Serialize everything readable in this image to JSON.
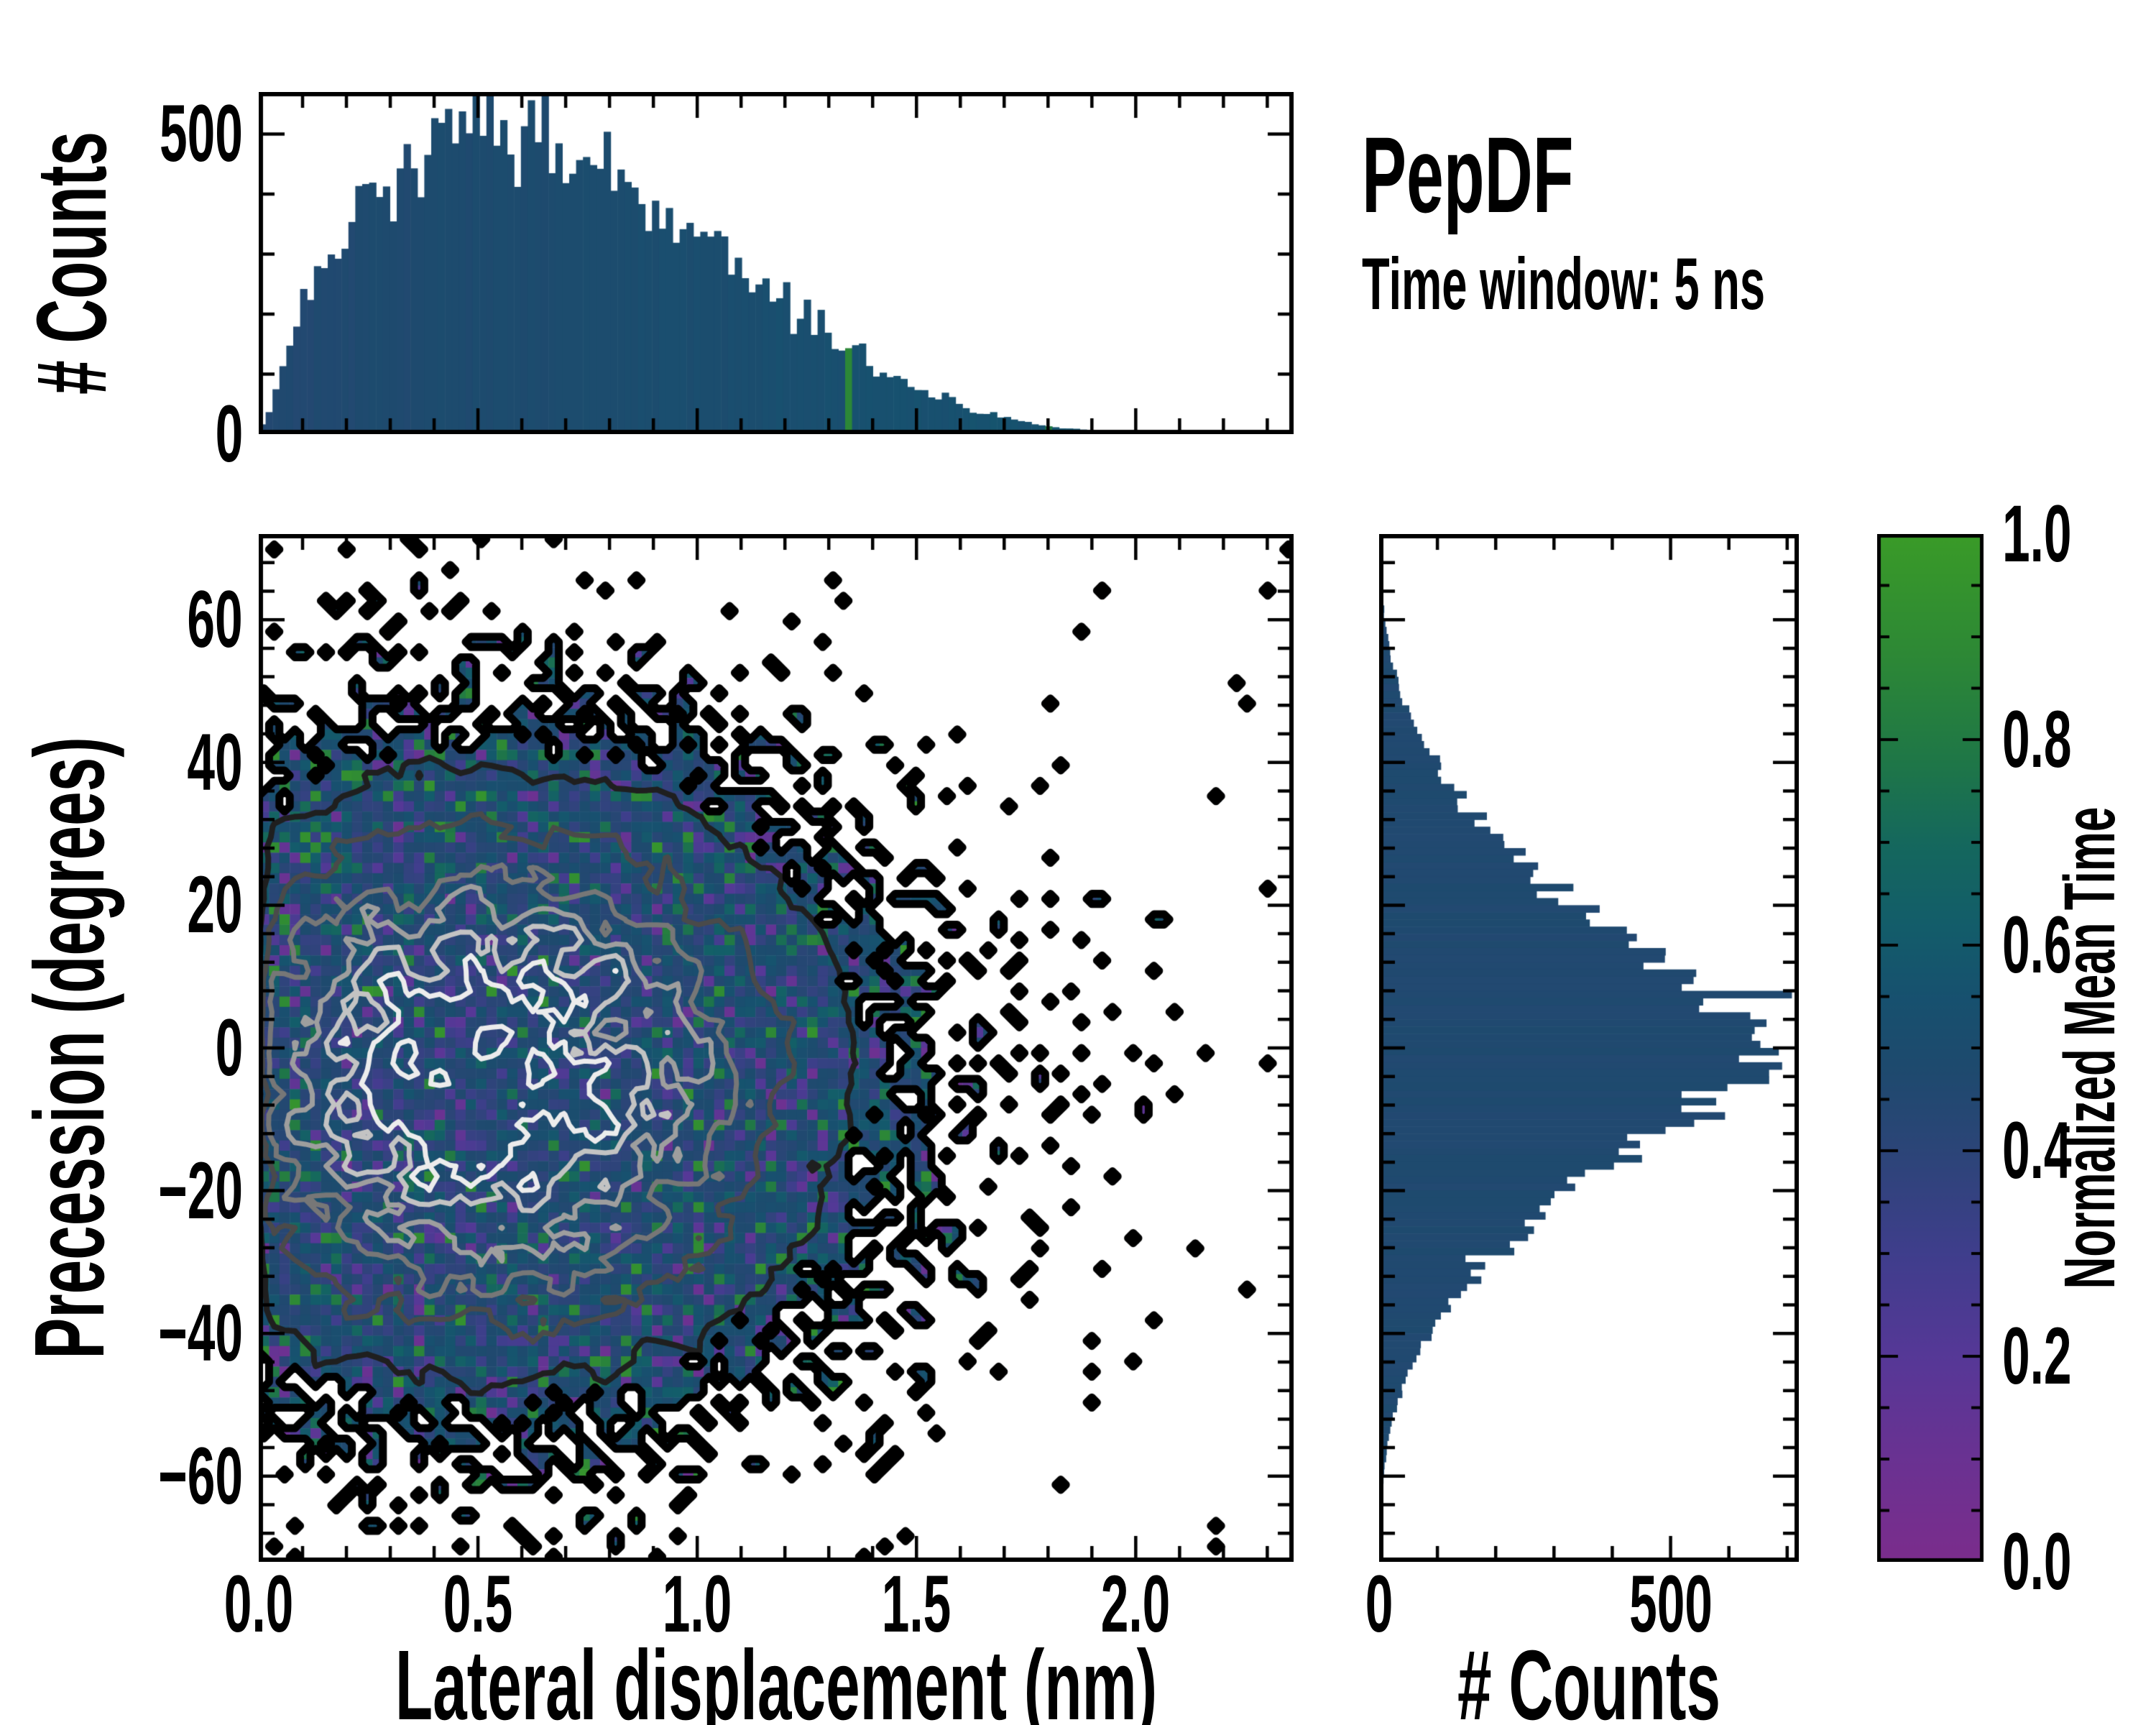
{
  "title": {
    "text": "PepDF",
    "subtitle": "Time window: 5 ns"
  },
  "colors": {
    "background": "#ffffff",
    "axis": "#000000",
    "text": "#000000",
    "histogram_bar": "#12416b",
    "contour_boundary": "#000000"
  },
  "render_seed": 20240607,
  "chart_data": [
    {
      "id": "top_histogram",
      "type": "bar",
      "orientation": "vertical",
      "ylabel": "# Counts",
      "xlabel": "",
      "xlim": [
        0,
        2.36
      ],
      "ylim": [
        0,
        570
      ],
      "ytick_values": [
        0,
        500
      ],
      "ytick_labels": [
        "0",
        "500"
      ],
      "y_minor_step": 100,
      "x_major_step": 0.5,
      "x_minor_step": 0.1,
      "bins": 150,
      "envelope_x": [
        0,
        0.03,
        0.06,
        0.1,
        0.14,
        0.18,
        0.22,
        0.26,
        0.3,
        0.35,
        0.4,
        0.45,
        0.5,
        0.55,
        0.6,
        0.65,
        0.7,
        0.75,
        0.8,
        0.85,
        0.9,
        0.95,
        1.0,
        1.05,
        1.1,
        1.15,
        1.2,
        1.25,
        1.3,
        1.35,
        1.4,
        1.45,
        1.5,
        1.55,
        1.6,
        1.65,
        1.7,
        1.75,
        1.8,
        1.85,
        1.9,
        1.95,
        2.0,
        2.1,
        2.2,
        2.36
      ],
      "envelope_counts": [
        5,
        45,
        130,
        205,
        265,
        305,
        350,
        395,
        430,
        465,
        485,
        500,
        508,
        515,
        505,
        495,
        472,
        455,
        438,
        420,
        395,
        362,
        330,
        305,
        278,
        250,
        222,
        195,
        168,
        142,
        118,
        97,
        79,
        63,
        49,
        38,
        28,
        20,
        14,
        10,
        7,
        5,
        4,
        2,
        1,
        0
      ],
      "noise_frac": 0.09,
      "color_value_base": 0.46,
      "color_value_slope": 0.055,
      "green_tail_prob": 0.05
    },
    {
      "id": "joint_heatmap",
      "type": "heatmap",
      "xlabel": "Lateral displacement (nm)",
      "ylabel": "Precession (degrees)",
      "xlim": [
        0,
        2.36
      ],
      "ylim": [
        -72,
        72
      ],
      "xtick_values": [
        0,
        0.5,
        1.0,
        1.5,
        2.0
      ],
      "xtick_labels": [
        "0.0",
        "0.5",
        "1.0",
        "1.5",
        "2.0"
      ],
      "ytick_values": [
        60,
        40,
        20,
        0,
        -20,
        -40,
        -60
      ],
      "ytick_labels": [
        "60",
        "40",
        "20",
        "0",
        "−20",
        "−40",
        "−60"
      ],
      "x_minor_step": 0.1,
      "y_minor_step": 4,
      "grid_cols": 100,
      "grid_rows": 100,
      "density_center": {
        "x": 0.52,
        "y": -4
      },
      "density_sigma": {
        "x": 0.42,
        "y": 22
      },
      "occupancy_gain": 7,
      "tail_amp": 0.055,
      "tail_width": 10,
      "value_base": 0.44,
      "value_spread": 0.09,
      "value_edge_shift": 0.1,
      "purple_prob_base": 0.05,
      "purple_prob_edge": 0.08,
      "green_prob_base": 0.04,
      "green_prob_edge": 0.12,
      "contour_levels": [
        {
          "level": 0.14,
          "color": "#1f1f1f",
          "width": 8
        },
        {
          "level": 0.28,
          "color": "#4a4a4a",
          "width": 7
        },
        {
          "level": 0.42,
          "color": "#777777",
          "width": 7
        },
        {
          "level": 0.56,
          "color": "#9e9e9e",
          "width": 7
        },
        {
          "level": 0.7,
          "color": "#c3c3c3",
          "width": 7
        },
        {
          "level": 0.84,
          "color": "#ececec",
          "width": 7
        }
      ],
      "boundary_contour": {
        "level": 0.5,
        "color": "#000000",
        "width": 11
      }
    },
    {
      "id": "right_histogram",
      "type": "bar",
      "orientation": "horizontal",
      "xlabel": "# Counts",
      "ylabel": "",
      "xlim": [
        0,
        720
      ],
      "ylim": [
        -72,
        72
      ],
      "xtick_values": [
        0,
        500
      ],
      "xtick_labels": [
        "0",
        "500"
      ],
      "x_minor_step": 100,
      "y_minor_step": 4,
      "bins": 144,
      "envelope_y": [
        -72,
        -65,
        -60,
        -55,
        -50,
        -45,
        -40,
        -35,
        -30,
        -25,
        -20,
        -15,
        -10,
        -6,
        -3,
        0,
        3,
        6,
        10,
        15,
        20,
        25,
        30,
        35,
        40,
        45,
        50,
        55,
        60,
        65,
        72
      ],
      "envelope_counts": [
        1,
        3,
        8,
        15,
        30,
        52,
        84,
        130,
        188,
        258,
        330,
        420,
        520,
        590,
        635,
        640,
        620,
        585,
        520,
        430,
        340,
        262,
        196,
        140,
        95,
        60,
        36,
        20,
        10,
        4,
        1
      ],
      "noise_frac": 0.07,
      "color_value": 0.47
    },
    {
      "id": "colorbar",
      "type": "colorbar",
      "label": "Normalized Mean Time",
      "tick_values": [
        0,
        0.2,
        0.4,
        0.6,
        0.8,
        1.0
      ],
      "tick_labels": [
        "0.0",
        "0.2",
        "0.4",
        "0.6",
        "0.8",
        "1.0"
      ],
      "minor_step": 0.05,
      "gradient_stops": [
        [
          0.0,
          "#7b2d8c"
        ],
        [
          0.1,
          "#6a3292"
        ],
        [
          0.2,
          "#563897"
        ],
        [
          0.3,
          "#3f3e8c"
        ],
        [
          0.4,
          "#2c4578"
        ],
        [
          0.48,
          "#1e4a6e"
        ],
        [
          0.55,
          "#17516f"
        ],
        [
          0.62,
          "#135d6a"
        ],
        [
          0.7,
          "#15685d"
        ],
        [
          0.78,
          "#1f7747"
        ],
        [
          0.88,
          "#2d8836"
        ],
        [
          1.0,
          "#3a9b28"
        ]
      ]
    }
  ]
}
